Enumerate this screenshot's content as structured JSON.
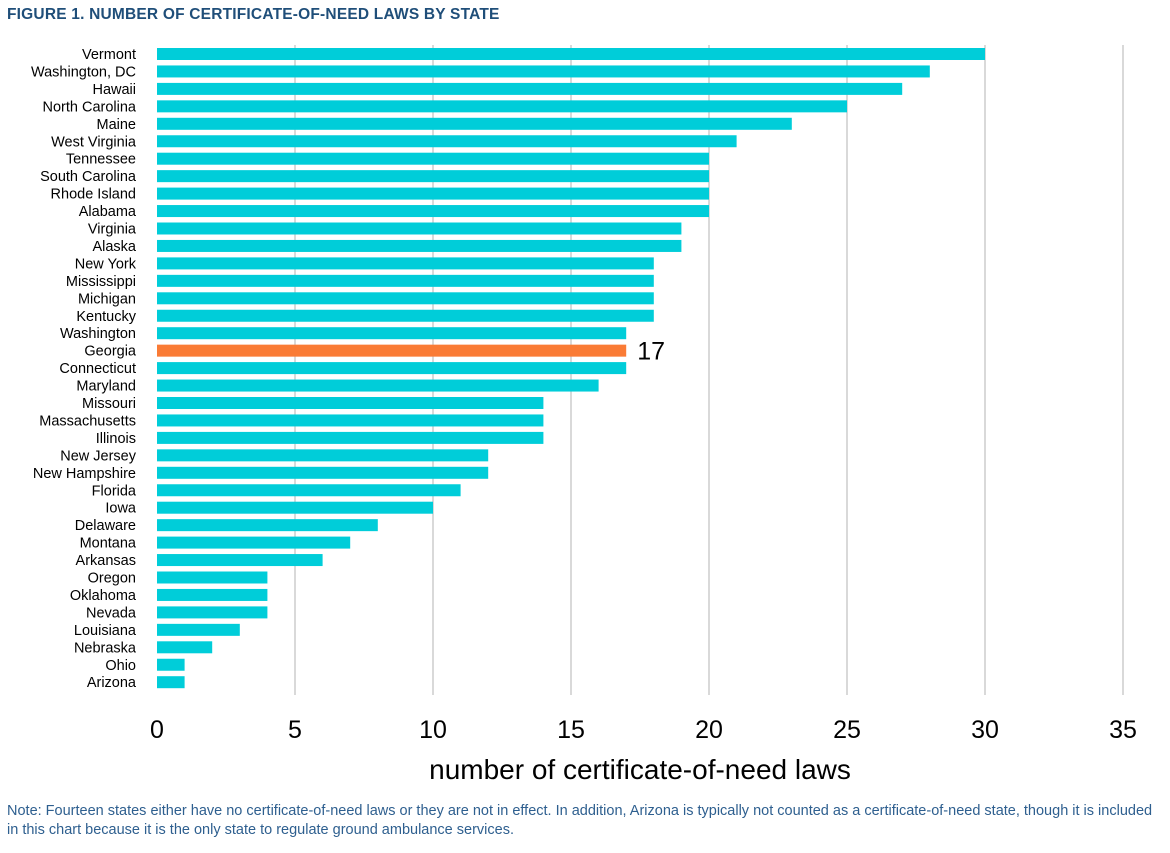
{
  "figure": {
    "title": "FIGURE 1. NUMBER OF CERTIFICATE-OF-NEED LAWS BY STATE",
    "note": "Note: Fourteen states either have no certificate-of-need laws or they are not in effect. In addition, Arizona is typically not counted as a certificate-of-need state, though it is included in this chart because it is the only state to regulate ground ambulance services."
  },
  "chart_data": {
    "type": "bar",
    "orientation": "horizontal",
    "title": "FIGURE 1. NUMBER OF CERTIFICATE-OF-NEED LAWS BY STATE",
    "xlabel": "number of certificate-of-need laws",
    "ylabel": "",
    "xlim": [
      0,
      35
    ],
    "xticks": [
      0,
      5,
      10,
      15,
      20,
      25,
      30,
      35
    ],
    "grid": "vertical",
    "legend": "none",
    "categories": [
      "Vermont",
      "Washington, DC",
      "Hawaii",
      "North Carolina",
      "Maine",
      "West Virginia",
      "Tennessee",
      "South Carolina",
      "Rhode Island",
      "Alabama",
      "Virginia",
      "Alaska",
      "New York",
      "Mississippi",
      "Michigan",
      "Kentucky",
      "Washington",
      "Georgia",
      "Connecticut",
      "Maryland",
      "Missouri",
      "Massachusetts",
      "Illinois",
      "New Jersey",
      "New Hampshire",
      "Florida",
      "Iowa",
      "Delaware",
      "Montana",
      "Arkansas",
      "Oregon",
      "Oklahoma",
      "Nevada",
      "Louisiana",
      "Nebraska",
      "Ohio",
      "Arizona"
    ],
    "values": [
      30,
      28,
      27,
      25,
      23,
      21,
      20,
      20,
      20,
      20,
      19,
      19,
      18,
      18,
      18,
      18,
      17,
      17,
      17,
      16,
      14,
      14,
      14,
      12,
      12,
      11,
      10,
      8,
      7,
      6,
      4,
      4,
      4,
      3,
      2,
      1,
      1
    ],
    "highlight": {
      "category": "Georgia",
      "label": "17"
    },
    "colors": {
      "bar": "#00cdd9",
      "highlight": "#fa7b35",
      "grid": "#d9d9d9",
      "title": "#1f4e79",
      "note": "#2e5f8f",
      "text": "#000000"
    }
  }
}
